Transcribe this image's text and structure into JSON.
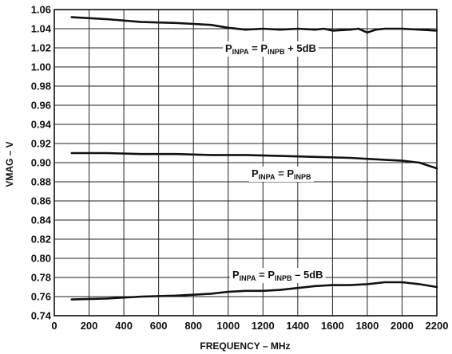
{
  "chart_data": {
    "type": "line",
    "title": "",
    "xlabel": "FREQUENCY – MHz",
    "ylabel": "VMAG – V",
    "xlim": [
      0,
      2200
    ],
    "ylim": [
      0.74,
      1.06
    ],
    "x_ticks": [
      "0",
      "200",
      "400",
      "600",
      "800",
      "1000",
      "1200",
      "1400",
      "1600",
      "1800",
      "2000",
      "2200"
    ],
    "y_ticks": [
      "0.74",
      "0.76",
      "0.78",
      "0.80",
      "0.82",
      "0.84",
      "0.86",
      "0.88",
      "0.90",
      "0.92",
      "0.94",
      "0.96",
      "0.98",
      "1.00",
      "1.02",
      "1.04",
      "1.06"
    ],
    "grid": true,
    "series": [
      {
        "name": "P_INPA = P_INPB + 5dB",
        "annotation": {
          "main1": "P",
          "sub1": "INPA",
          "main2": " = P",
          "sub2": "INPB",
          "main3": " + 5dB"
        },
        "x": [
          100,
          300,
          500,
          700,
          800,
          900,
          1000,
          1100,
          1200,
          1300,
          1400,
          1500,
          1550,
          1600,
          1700,
          1750,
          1800,
          1850,
          1900,
          2000,
          2100,
          2200
        ],
        "y": [
          1.052,
          1.05,
          1.047,
          1.046,
          1.045,
          1.044,
          1.041,
          1.039,
          1.04,
          1.039,
          1.04,
          1.039,
          1.04,
          1.038,
          1.039,
          1.04,
          1.036,
          1.039,
          1.04,
          1.04,
          1.039,
          1.038
        ]
      },
      {
        "name": "P_INPA = P_INPB",
        "annotation": {
          "main1": "P",
          "sub1": "INPA",
          "main2": " = P",
          "sub2": "INPB",
          "main3": ""
        },
        "x": [
          100,
          300,
          500,
          700,
          900,
          1100,
          1300,
          1500,
          1700,
          1900,
          2000,
          2100,
          2150,
          2200
        ],
        "y": [
          0.91,
          0.91,
          0.909,
          0.909,
          0.908,
          0.908,
          0.907,
          0.906,
          0.905,
          0.903,
          0.902,
          0.9,
          0.897,
          0.894
        ]
      },
      {
        "name": "P_INPA = P_INPB – 5dB",
        "annotation": {
          "main1": "P",
          "sub1": "INPA",
          "main2": " = P",
          "sub2": "INPB",
          "main3": " – 5dB"
        },
        "x": [
          100,
          300,
          500,
          700,
          900,
          1000,
          1100,
          1200,
          1300,
          1400,
          1500,
          1600,
          1700,
          1800,
          1900,
          2000,
          2100,
          2200
        ],
        "y": [
          0.757,
          0.758,
          0.76,
          0.761,
          0.763,
          0.765,
          0.766,
          0.766,
          0.767,
          0.769,
          0.771,
          0.772,
          0.772,
          0.773,
          0.775,
          0.775,
          0.773,
          0.77
        ]
      }
    ]
  }
}
